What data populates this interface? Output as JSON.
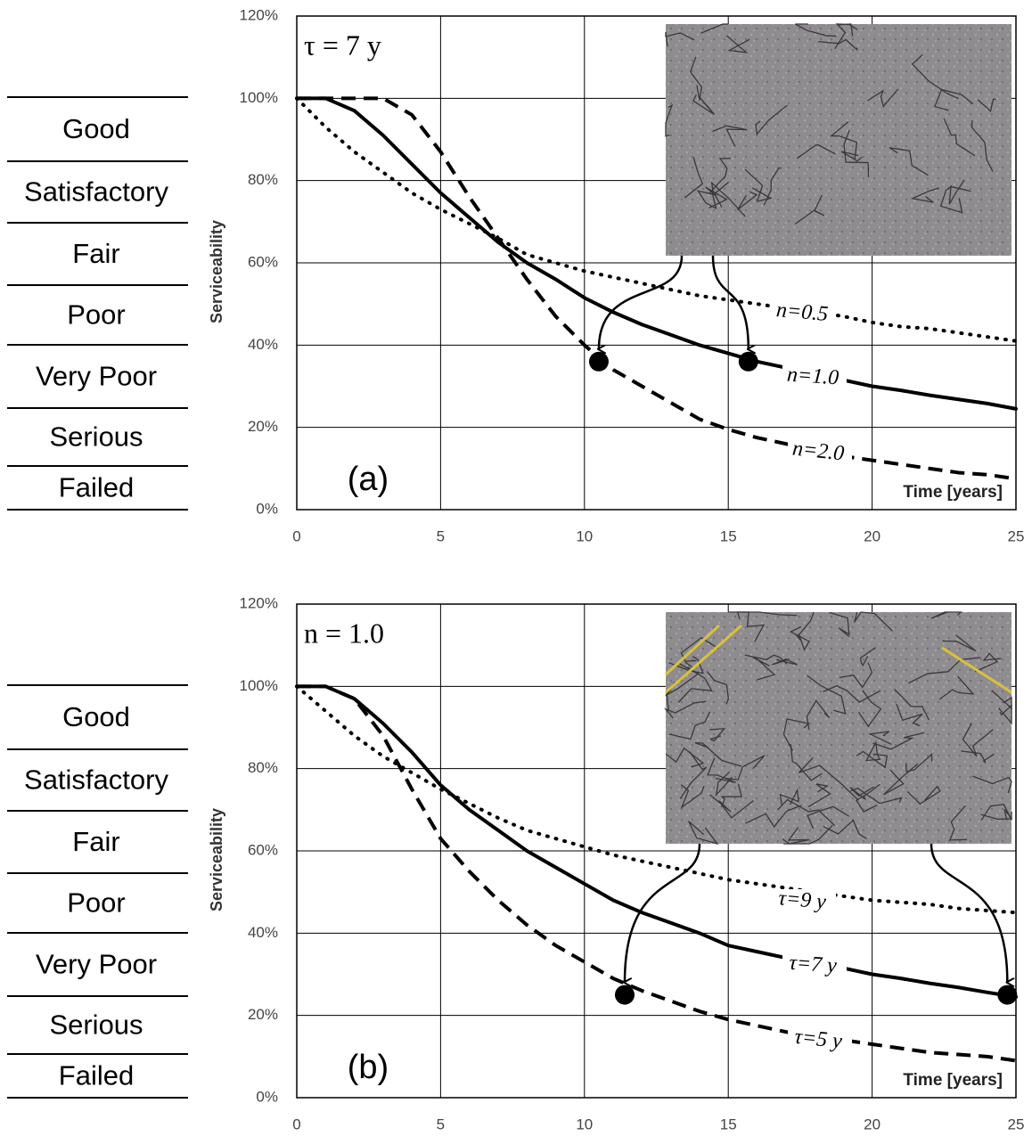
{
  "chart_data": [
    {
      "type": "line",
      "annotation": "τ = 7 y",
      "panel_label": "(a)",
      "xlabel": "Time [years]",
      "ylabel": "Serviceability",
      "condition_scale": [
        "Good",
        "Satisfactory",
        "Fair",
        "Poor",
        "Very Poor",
        "Serious",
        "Failed"
      ],
      "x": [
        0,
        1,
        2,
        3,
        4,
        5,
        6,
        7,
        8,
        9,
        10,
        11,
        12,
        13,
        14,
        15,
        16,
        17,
        18,
        19,
        20,
        21,
        22,
        23,
        24,
        25
      ],
      "series": [
        {
          "name": "n=0.5",
          "color": "#000000",
          "style": "dotted",
          "values": [
            100,
            93,
            87,
            82,
            77,
            73,
            69.5,
            66,
            62,
            60,
            58,
            56.5,
            55,
            53.5,
            52,
            51,
            50,
            49,
            48,
            47,
            45.5,
            44.5,
            44,
            43,
            42,
            41
          ]
        },
        {
          "name": "n=1.0",
          "color": "#000000",
          "style": "solid",
          "values": [
            100,
            100,
            97,
            91,
            84,
            77,
            71,
            65,
            60,
            56,
            51.5,
            48,
            45,
            42.5,
            40,
            38,
            36,
            34.5,
            33,
            31.5,
            30,
            29,
            27.8,
            26.8,
            25.8,
            24.5
          ]
        },
        {
          "name": "n=2.0",
          "color": "#000000",
          "style": "dashed",
          "values": [
            100,
            100,
            100,
            100,
            96,
            87,
            76,
            66,
            56,
            47,
            40,
            34,
            30,
            26,
            22,
            19.5,
            17.5,
            16,
            14.5,
            13,
            12,
            11,
            10,
            9,
            8.5,
            7.5
          ]
        }
      ],
      "points": {
        "x": [
          10.5,
          15.7
        ],
        "values": [
          36,
          36
        ]
      },
      "xlim": [
        0,
        25
      ],
      "xticks": [
        0,
        5,
        10,
        15,
        20,
        25
      ],
      "ylim": [
        0,
        120
      ],
      "yticks": [
        {
          "value": 0,
          "label": "0%"
        },
        {
          "value": 20,
          "label": "20%"
        },
        {
          "value": 40,
          "label": "40%"
        },
        {
          "value": 60,
          "label": "60%"
        },
        {
          "value": 80,
          "label": "80%"
        },
        {
          "value": 100,
          "label": "100%"
        },
        {
          "value": 120,
          "label": "120%"
        }
      ],
      "grid": true
    },
    {
      "type": "line",
      "annotation": "n = 1.0",
      "panel_label": "(b)",
      "xlabel": "Time [years]",
      "ylabel": "Serviceability",
      "condition_scale": [
        "Good",
        "Satisfactory",
        "Fair",
        "Poor",
        "Very Poor",
        "Serious",
        "Failed"
      ],
      "x": [
        0,
        1,
        2,
        3,
        4,
        5,
        6,
        7,
        8,
        9,
        10,
        11,
        12,
        13,
        14,
        15,
        16,
        17,
        18,
        19,
        20,
        21,
        22,
        23,
        24,
        25
      ],
      "series": [
        {
          "name": "τ=9 y",
          "color": "#000000",
          "style": "dotted",
          "values": [
            100,
            94,
            88,
            83,
            79,
            75,
            71.5,
            68,
            65,
            63,
            61,
            59,
            57.5,
            56,
            54.5,
            53,
            52,
            51,
            50,
            49,
            48,
            47.5,
            47,
            46,
            45.5,
            45
          ]
        },
        {
          "name": "τ=7 y",
          "color": "#000000",
          "style": "solid",
          "values": [
            100,
            100,
            97,
            91,
            84,
            76,
            70,
            65,
            60,
            56,
            52,
            48,
            45,
            42.5,
            40,
            37,
            35.5,
            34,
            33,
            31.5,
            30,
            29,
            27.8,
            26.8,
            25.6,
            24.5
          ]
        },
        {
          "name": "τ=5 y",
          "color": "#000000",
          "style": "dashed",
          "values": [
            100,
            100,
            97,
            88,
            75,
            63,
            55,
            48,
            42,
            37,
            33,
            29,
            26,
            23.5,
            21,
            19,
            17.5,
            16,
            15,
            14,
            13,
            12,
            11,
            10.5,
            10,
            9
          ]
        }
      ],
      "points": {
        "x": [
          11.4,
          24.7
        ],
        "values": [
          25,
          25
        ]
      },
      "xlim": [
        0,
        25
      ],
      "xticks": [
        0,
        5,
        10,
        15,
        20,
        25
      ],
      "ylim": [
        0,
        120
      ],
      "yticks": [
        {
          "value": 0,
          "label": "0%"
        },
        {
          "value": 20,
          "label": "20%"
        },
        {
          "value": 40,
          "label": "40%"
        },
        {
          "value": 60,
          "label": "60%"
        },
        {
          "value": 80,
          "label": "80%"
        },
        {
          "value": 100,
          "label": "100%"
        },
        {
          "value": 120,
          "label": "120%"
        }
      ],
      "grid": true
    }
  ]
}
